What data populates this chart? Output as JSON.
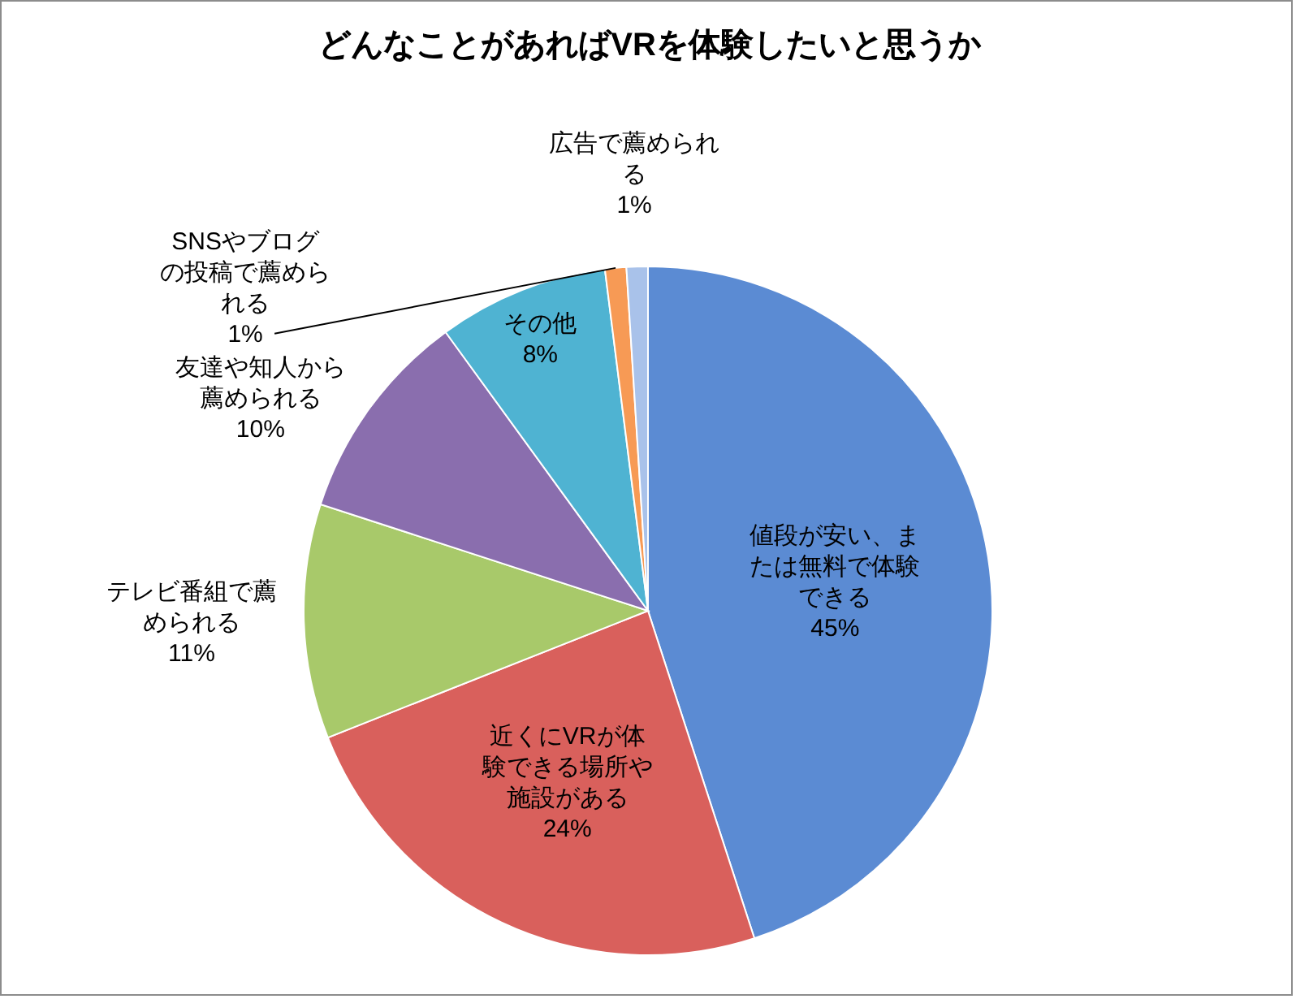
{
  "chart_data": {
    "type": "pie",
    "title": "どんなことがあればVRを体験したいと思うか",
    "categories": [
      "値段が安い、または無料で体験できる",
      "近くにVRが体験できる場所や施設がある",
      "テレビ番組で薦められる",
      "友達や知人から薦められる",
      "その他",
      "SNSやブログの投稿で薦められる",
      "広告で薦められる"
    ],
    "values": [
      45,
      24,
      11,
      10,
      8,
      1,
      1
    ],
    "value_labels": [
      "45%",
      "24%",
      "11%",
      "10%",
      "8%",
      "1%",
      "1%"
    ],
    "colors": [
      "#5b8bd3",
      "#d9605c",
      "#a8c96a",
      "#8a6eae",
      "#4fb3d2",
      "#f79a55",
      "#a9c2ea"
    ],
    "legend": false
  }
}
